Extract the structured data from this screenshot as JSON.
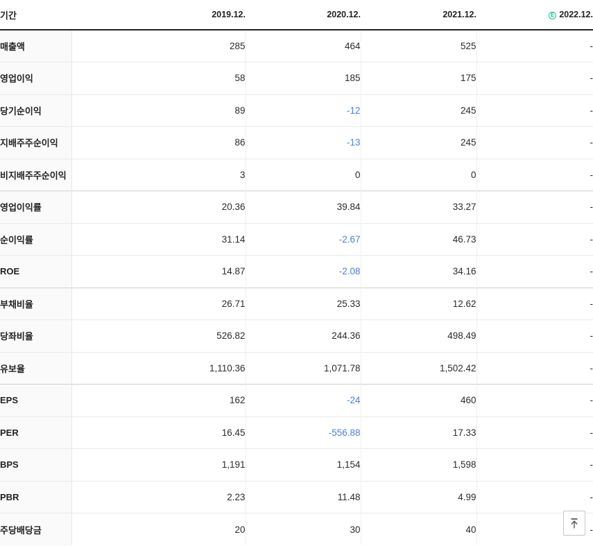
{
  "colors": {
    "negative_value": "#4a7edd",
    "estimate_green": "#17c39a",
    "header_border": "#222222",
    "row_divider": "#eaeaea",
    "group_divider": "#cfcfcf"
  },
  "table": {
    "period_label": "기간",
    "columns": [
      "2019.12.",
      "2020.12.",
      "2021.12.",
      "2022.12."
    ],
    "estimate_column_index": 3,
    "estimate_icon_letter": "E",
    "rows": [
      {
        "label": "매출액",
        "values": [
          "285",
          "464",
          "525",
          "-"
        ]
      },
      {
        "label": "영업이익",
        "values": [
          "58",
          "185",
          "175",
          "-"
        ]
      },
      {
        "label": "당기순이익",
        "values": [
          "89",
          "-12",
          "245",
          "-"
        ]
      },
      {
        "label": "지배주주순이익",
        "values": [
          "86",
          "-13",
          "245",
          "-"
        ]
      },
      {
        "label": "비지배주주순이익",
        "values": [
          "3",
          "0",
          "0",
          "-"
        ]
      },
      {
        "label": "영업이익률",
        "values": [
          "20.36",
          "39.84",
          "33.27",
          "-"
        ],
        "group_start": true
      },
      {
        "label": "순이익률",
        "values": [
          "31.14",
          "-2.67",
          "46.73",
          "-"
        ]
      },
      {
        "label": "ROE",
        "values": [
          "14.87",
          "-2.08",
          "34.16",
          "-"
        ]
      },
      {
        "label": "부채비율",
        "values": [
          "26.71",
          "25.33",
          "12.62",
          "-"
        ],
        "group_start": true
      },
      {
        "label": "당좌비율",
        "values": [
          "526.82",
          "244.36",
          "498.49",
          "-"
        ]
      },
      {
        "label": "유보율",
        "values": [
          "1,110.36",
          "1,071.78",
          "1,502.42",
          "-"
        ]
      },
      {
        "label": "EPS",
        "values": [
          "162",
          "-24",
          "460",
          "-"
        ],
        "group_start": true
      },
      {
        "label": "PER",
        "values": [
          "16.45",
          "-556.88",
          "17.33",
          "-"
        ]
      },
      {
        "label": "BPS",
        "values": [
          "1,191",
          "1,154",
          "1,598",
          "-"
        ]
      },
      {
        "label": "PBR",
        "values": [
          "2.23",
          "11.48",
          "4.99",
          "-"
        ]
      },
      {
        "label": "주당배당금",
        "values": [
          "20",
          "30",
          "40",
          "-"
        ]
      }
    ]
  },
  "scroll_top_button": {
    "icon": "arrow-up-to-top-icon"
  }
}
